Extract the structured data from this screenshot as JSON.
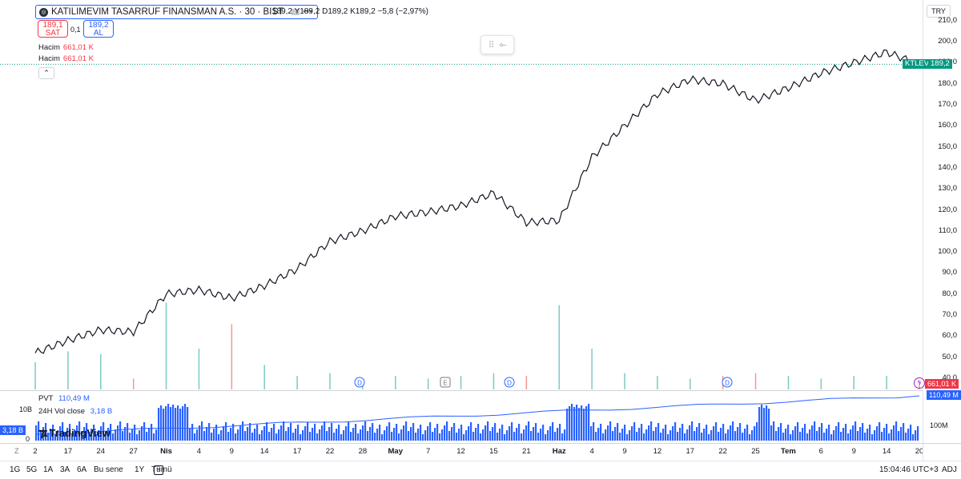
{
  "legend": {
    "symbol_title": "KATILIMEVIM TASARRUF FINANSMAN A.S. · 30 · BIST",
    "ohlc": "189,2 Y189,2 D189,2 K189,2 −5,8 (−2,97%)",
    "sell_price": "189,1",
    "sell_label": "SAT",
    "spread": "0,1",
    "buy_price": "189,2",
    "buy_label": "AL",
    "volume_label_1": "Hacim",
    "volume_value_1": "661,01 K",
    "volume_label_2": "Hacim",
    "volume_value_2": "661,01 K"
  },
  "price_axis": {
    "currency": "TRY",
    "ticks": [
      "210,0",
      "200,0",
      "190,0",
      "180,0",
      "170,0",
      "160,0",
      "150,0",
      "140,0",
      "130,0",
      "120,0",
      "110,0",
      "100,0",
      "90,0",
      "80,0",
      "70,0",
      "60,0",
      "50,0",
      "40,0"
    ],
    "ticker_badge": "KTLEV",
    "current_price": "189,2",
    "volume_badge": "661,01 K"
  },
  "indicator": {
    "pvt_label": "PVT",
    "pvt_value": "110,49 M",
    "vol_label": "24H Vol close",
    "vol_value": "3,18 B",
    "left_tick_top": "10B",
    "left_tick_bottom": "0",
    "left_badge": "3,18 B",
    "right_badge": "110,49 M",
    "right_tick": "100M"
  },
  "events": {
    "dividend": "D",
    "earnings": "E"
  },
  "time_axis": {
    "ticks": [
      {
        "label": "2",
        "month": false
      },
      {
        "label": "17",
        "month": false
      },
      {
        "label": "24",
        "month": false
      },
      {
        "label": "27",
        "month": false
      },
      {
        "label": "Nis",
        "month": true
      },
      {
        "label": "4",
        "month": false
      },
      {
        "label": "9",
        "month": false
      },
      {
        "label": "14",
        "month": false
      },
      {
        "label": "17",
        "month": false
      },
      {
        "label": "22",
        "month": false
      },
      {
        "label": "28",
        "month": false
      },
      {
        "label": "May",
        "month": true
      },
      {
        "label": "7",
        "month": false
      },
      {
        "label": "12",
        "month": false
      },
      {
        "label": "15",
        "month": false
      },
      {
        "label": "21",
        "month": false
      },
      {
        "label": "Haz",
        "month": true
      },
      {
        "label": "4",
        "month": false
      },
      {
        "label": "9",
        "month": false
      },
      {
        "label": "12",
        "month": false
      },
      {
        "label": "17",
        "month": false
      },
      {
        "label": "22",
        "month": false
      },
      {
        "label": "25",
        "month": false
      },
      {
        "label": "Tem",
        "month": true
      },
      {
        "label": "6",
        "month": false
      },
      {
        "label": "9",
        "month": false
      },
      {
        "label": "14",
        "month": false
      },
      {
        "label": "20",
        "month": false
      }
    ]
  },
  "bottom_bar": {
    "timeframes": [
      "1G",
      "5G",
      "1A",
      "3A",
      "6A",
      "Bu sene",
      "1Y",
      "Tümü"
    ],
    "clock": "15:04:46 UTC+3",
    "adj": "ADJ"
  },
  "logo": {
    "text": "TradingView"
  },
  "chart_data": {
    "type": "line",
    "title": "KATILIMEVIM TASARRUF FINANSMAN A.S. · 30 · BIST",
    "xlabel": "",
    "ylabel": "",
    "ylim": [
      40,
      210
    ],
    "grid": true,
    "x": [
      "2",
      "17",
      "24",
      "27",
      "Nis",
      "4",
      "9",
      "14",
      "17",
      "22",
      "28",
      "May",
      "7",
      "12",
      "15",
      "21",
      "Haz",
      "4",
      "9",
      "12",
      "17",
      "22",
      "25",
      "Tem",
      "6",
      "9",
      "14",
      "20"
    ],
    "series": [
      {
        "values": [
          52,
          58,
          63,
          62,
          80,
          82,
          78,
          84,
          92,
          105,
          110,
          117,
          119,
          122,
          128,
          114,
          115,
          145,
          160,
          175,
          182,
          180,
          172,
          178,
          185,
          190,
          195,
          189.2
        ]
      }
    ],
    "volume_spikes_k": [
      20,
      28,
      26,
      8,
      64,
      30,
      48,
      18,
      10,
      12,
      8,
      10,
      8,
      10,
      12,
      10,
      62,
      30,
      12,
      10,
      8,
      10,
      12,
      10,
      8,
      10,
      10,
      6
    ]
  }
}
